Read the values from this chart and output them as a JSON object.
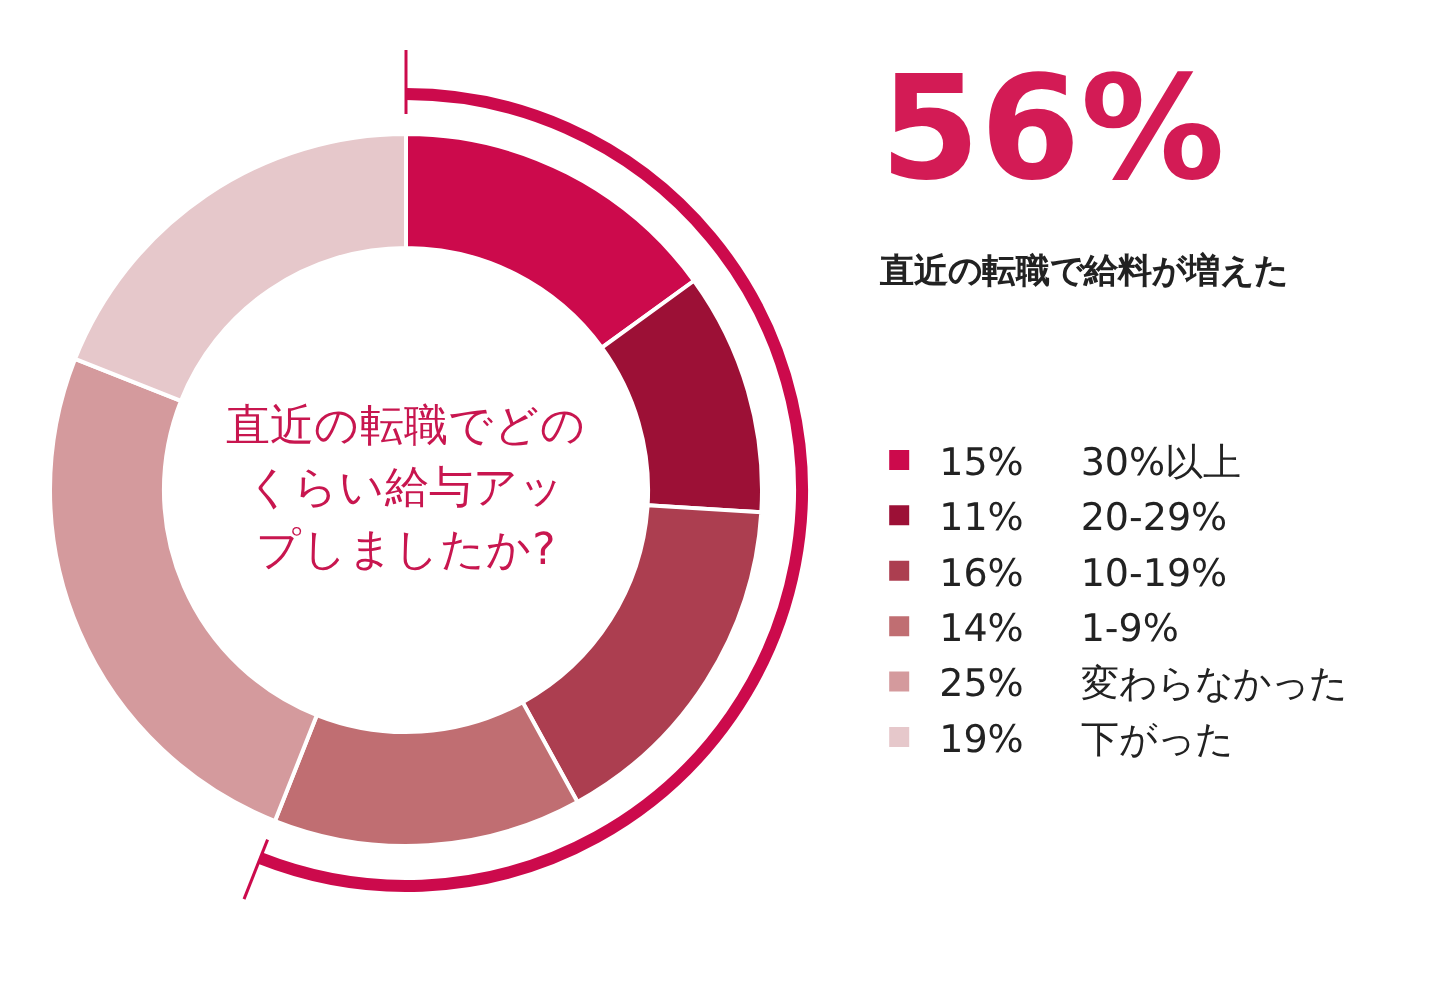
{
  "chart_data": {
    "type": "donut",
    "title": "直近の転職でどのくらい給与アップしましたか?",
    "annotations": [
      "56%",
      "直近の転職で給料が増えた"
    ],
    "categories": [
      "30%以上",
      "20-29%",
      "10-19%",
      "1-9%",
      "変わらなかった",
      "下がった"
    ],
    "values": [
      15,
      11,
      16,
      14,
      25,
      19
    ],
    "value_labels": [
      "15%",
      "11%",
      "16%",
      "14%",
      "25%",
      "19%"
    ],
    "colors": [
      "#cc0a4c",
      "#9c1036",
      "#ac3e50",
      "#c06e72",
      "#d49a9d",
      "#e6c8cb"
    ],
    "legend": "right"
  }
}
